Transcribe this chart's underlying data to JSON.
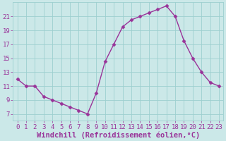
{
  "x": [
    0,
    1,
    2,
    3,
    4,
    5,
    6,
    7,
    8,
    9,
    10,
    11,
    12,
    13,
    14,
    15,
    16,
    17,
    18,
    19,
    20,
    21,
    22,
    23
  ],
  "y": [
    12.0,
    11.0,
    11.0,
    9.5,
    9.0,
    8.5,
    8.0,
    7.5,
    7.0,
    10.0,
    14.5,
    17.0,
    19.5,
    20.5,
    21.0,
    21.5,
    22.0,
    22.5,
    21.0,
    17.5,
    15.0,
    13.0,
    11.5,
    11.0
  ],
  "line_color": "#993399",
  "marker": "D",
  "marker_size": 2.5,
  "bg_color": "#cbe8e8",
  "grid_color": "#9dcfcf",
  "xlabel": "Windchill (Refroidissement éolien,°C)",
  "xlabel_color": "#993399",
  "xlabel_fontsize": 7.5,
  "ytick_labels": [
    "7",
    "9",
    "11",
    "13",
    "15",
    "17",
    "19",
    "21"
  ],
  "ytick_vals": [
    7,
    9,
    11,
    13,
    15,
    17,
    19,
    21
  ],
  "xticks": [
    0,
    1,
    2,
    3,
    4,
    5,
    6,
    7,
    8,
    9,
    10,
    11,
    12,
    13,
    14,
    15,
    16,
    17,
    18,
    19,
    20,
    21,
    22,
    23
  ],
  "xlim": [
    -0.5,
    23.5
  ],
  "ylim": [
    6.0,
    23.0
  ],
  "tick_fontsize": 6.5,
  "tick_color": "#993399",
  "linewidth": 1.0
}
